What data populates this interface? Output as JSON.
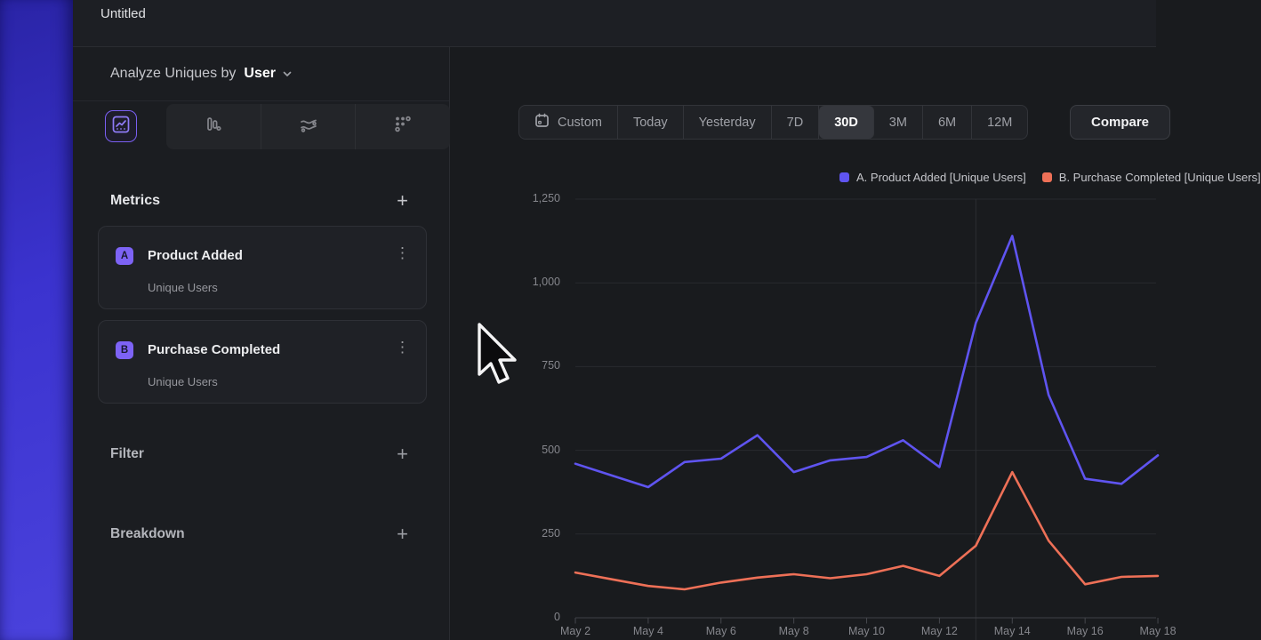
{
  "window": {
    "title": "Untitled"
  },
  "sidebar": {
    "analyze_label": "Analyze Uniques by",
    "analyze_value": "User",
    "chart_tabs": [
      {
        "name": "line-chart",
        "selected": true
      },
      {
        "name": "bar-chart",
        "selected": false
      },
      {
        "name": "stream-chart",
        "selected": false
      },
      {
        "name": "dot-grid-chart",
        "selected": false
      }
    ],
    "metrics": {
      "title": "Metrics",
      "add_label": "+",
      "items": [
        {
          "badge": "A",
          "label": "Product Added",
          "sublabel": "Unique Users"
        },
        {
          "badge": "B",
          "label": "Purchase Completed",
          "sublabel": "Unique Users"
        }
      ]
    },
    "filter": {
      "title": "Filter",
      "add_label": "+"
    },
    "breakdown": {
      "title": "Breakdown",
      "add_label": "+"
    }
  },
  "main": {
    "time_ranges": [
      "Custom",
      "Today",
      "Yesterday",
      "7D",
      "30D",
      "3M",
      "6M",
      "12M"
    ],
    "selected_range": "30D",
    "compare_label": "Compare",
    "legend": [
      {
        "label": "A. Product Added [Unique Users]",
        "color": "#5f54f0"
      },
      {
        "label": "B. Purchase Completed [Unique Users]",
        "color": "#ee7057"
      }
    ]
  },
  "chart_data": {
    "type": "line",
    "x": [
      "May 2",
      "May 3",
      "May 4",
      "May 5",
      "May 6",
      "May 7",
      "May 8",
      "May 9",
      "May 10",
      "May 11",
      "May 12",
      "May 13",
      "May 14",
      "May 15",
      "May 16",
      "May 17",
      "May 18"
    ],
    "tick_every": 2,
    "series": [
      {
        "name": "A. Product Added [Unique Users]",
        "color": "#5f54f0",
        "values": [
          460,
          425,
          390,
          465,
          475,
          545,
          435,
          470,
          480,
          530,
          450,
          880,
          1140,
          665,
          415,
          400,
          485
        ]
      },
      {
        "name": "B. Purchase Completed [Unique Users]",
        "color": "#ee7057",
        "values": [
          135,
          115,
          95,
          85,
          105,
          120,
          130,
          118,
          130,
          155,
          125,
          215,
          435,
          230,
          100,
          122,
          125
        ]
      }
    ],
    "ylim": [
      0,
      1250
    ],
    "yticks": [
      0,
      250,
      500,
      750,
      1000,
      1250
    ],
    "grid": true,
    "vertical_gridline_at": "May 13",
    "legend_position": "top-right",
    "title": "",
    "xlabel": "",
    "ylabel": ""
  },
  "colors": {
    "accent_purple": "#7a5ff2",
    "badge_purple": "#7d63f5",
    "series_a": "#5f54f0",
    "series_b": "#ee7057",
    "sidebar_bg": "#1b1d21",
    "topbar_bg": "#1d1f24",
    "main_bg": "#191b1e",
    "card_bg": "#1f2126"
  }
}
